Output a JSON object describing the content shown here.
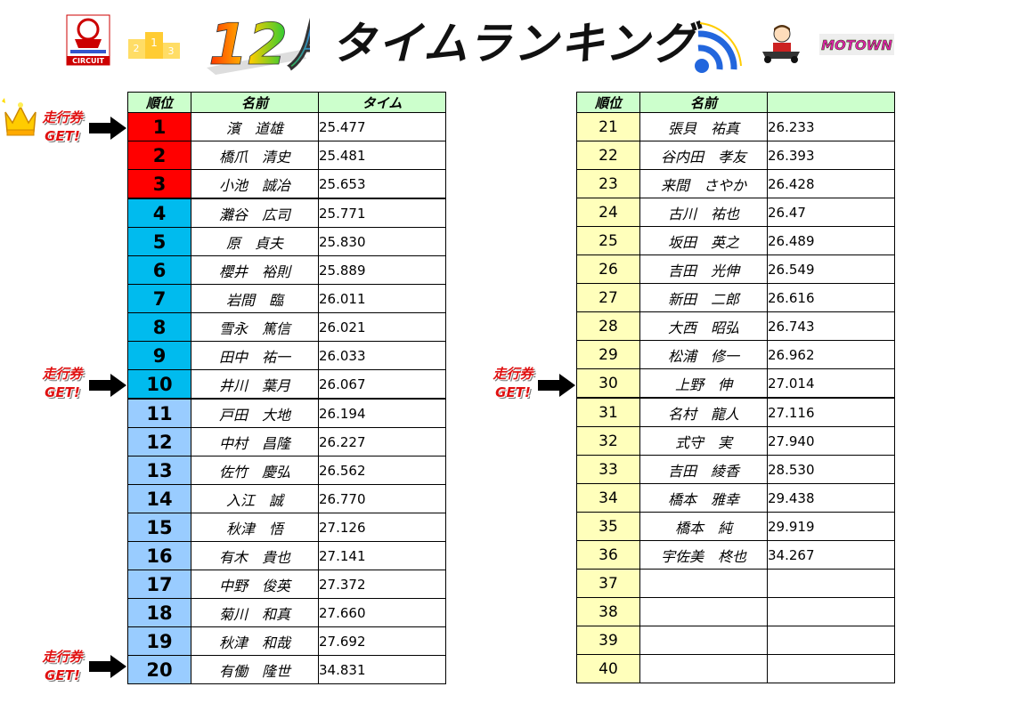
{
  "header": {
    "month": "12月",
    "title": "タイムランキング",
    "circuit_logo_text": "CIRCUIT",
    "motown_logo_text": "MOTOWN"
  },
  "columns": {
    "rank": "順位",
    "name": "名前",
    "time": "タイム"
  },
  "badge": {
    "line1": "走行券",
    "line2": "GET!"
  },
  "left_table": [
    {
      "rank": "1",
      "name": "濱　道雄",
      "time": "25.477"
    },
    {
      "rank": "2",
      "name": "橋爪　清史",
      "time": "25.481"
    },
    {
      "rank": "3",
      "name": "小池　誠冶",
      "time": "25.653"
    },
    {
      "rank": "4",
      "name": "灘谷　広司",
      "time": "25.771"
    },
    {
      "rank": "5",
      "name": "原　貞夫",
      "time": "25.830"
    },
    {
      "rank": "6",
      "name": "櫻井　裕則",
      "time": "25.889"
    },
    {
      "rank": "7",
      "name": "岩間　臨",
      "time": "26.011"
    },
    {
      "rank": "8",
      "name": "雪永　篤信",
      "time": "26.021"
    },
    {
      "rank": "9",
      "name": "田中　祐一",
      "time": "26.033"
    },
    {
      "rank": "10",
      "name": "井川　葉月",
      "time": "26.067"
    },
    {
      "rank": "11",
      "name": "戸田　大地",
      "time": "26.194"
    },
    {
      "rank": "12",
      "name": "中村　昌隆",
      "time": "26.227"
    },
    {
      "rank": "13",
      "name": "佐竹　慶弘",
      "time": "26.562"
    },
    {
      "rank": "14",
      "name": "入江　誠",
      "time": "26.770"
    },
    {
      "rank": "15",
      "name": "秋津　悟",
      "time": "27.126"
    },
    {
      "rank": "16",
      "name": "有木　貴也",
      "time": "27.141"
    },
    {
      "rank": "17",
      "name": "中野　俊英",
      "time": "27.372"
    },
    {
      "rank": "18",
      "name": "菊川　和真",
      "time": "27.660"
    },
    {
      "rank": "19",
      "name": "秋津　和哉",
      "time": "27.692"
    },
    {
      "rank": "20",
      "name": "有働　隆世",
      "time": "34.831"
    }
  ],
  "right_table": [
    {
      "rank": "21",
      "name": "張貝　祐真",
      "time": "26.233"
    },
    {
      "rank": "22",
      "name": "谷内田　孝友",
      "time": "26.393"
    },
    {
      "rank": "23",
      "name": "来間　さやか",
      "time": "26.428"
    },
    {
      "rank": "24",
      "name": "古川　祐也",
      "time": "26.47"
    },
    {
      "rank": "25",
      "name": "坂田　英之",
      "time": "26.489"
    },
    {
      "rank": "26",
      "name": "吉田　光伸",
      "time": "26.549"
    },
    {
      "rank": "27",
      "name": "新田　二郎",
      "time": "26.616"
    },
    {
      "rank": "28",
      "name": "大西　昭弘",
      "time": "26.743"
    },
    {
      "rank": "29",
      "name": "松浦　修一",
      "time": "26.962"
    },
    {
      "rank": "30",
      "name": "上野　伸",
      "time": "27.014"
    },
    {
      "rank": "31",
      "name": "名村　龍人",
      "time": "27.116"
    },
    {
      "rank": "32",
      "name": "式守　実",
      "time": "27.940"
    },
    {
      "rank": "33",
      "name": "吉田　綾香",
      "time": "28.530"
    },
    {
      "rank": "34",
      "name": "橋本　雅幸",
      "time": "29.438"
    },
    {
      "rank": "35",
      "name": "橋本　純",
      "time": "29.919"
    },
    {
      "rank": "36",
      "name": "宇佐美　柊也",
      "time": "34.267"
    },
    {
      "rank": "37",
      "name": "",
      "time": ""
    },
    {
      "rank": "38",
      "name": "",
      "time": ""
    },
    {
      "rank": "39",
      "name": "",
      "time": ""
    },
    {
      "rank": "40",
      "name": "",
      "time": ""
    }
  ],
  "colors": {
    "top3": "#ff0000",
    "top10": "#00bbee",
    "rest_left": "#99ccff",
    "right_rank": "#ffffbb",
    "header_bg": "#ccffcc",
    "badge_text": "#e01010"
  }
}
